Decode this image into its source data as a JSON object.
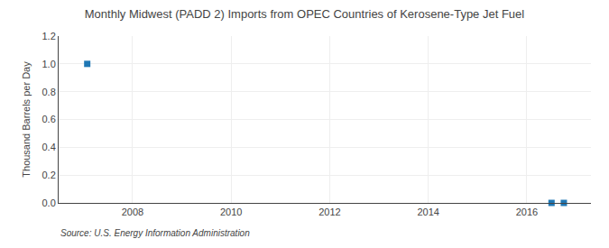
{
  "chart_data": {
    "type": "scatter",
    "title": "Monthly Midwest (PADD 2) Imports from OPEC Countries of Kerosene-Type Jet Fuel",
    "ylabel": "Thousand Barrels per Day",
    "annotations": [
      "Source: U.S. Energy Information Administration"
    ],
    "x": [
      2007.08,
      2016.5,
      2016.75
    ],
    "values": [
      1.0,
      0.0,
      0.0
    ],
    "marker": "square",
    "xlim": [
      2006.5,
      2017.3
    ],
    "ylim": [
      0.0,
      1.2
    ],
    "xticks": [
      2008,
      2010,
      2012,
      2014,
      2016
    ],
    "yticks": [
      {
        "value": 0.0,
        "label": "0.0"
      },
      0.2,
      0.4,
      0.6,
      0.8,
      {
        "value": 1.0,
        "label": "1.0"
      },
      1.2
    ],
    "grid": true
  }
}
